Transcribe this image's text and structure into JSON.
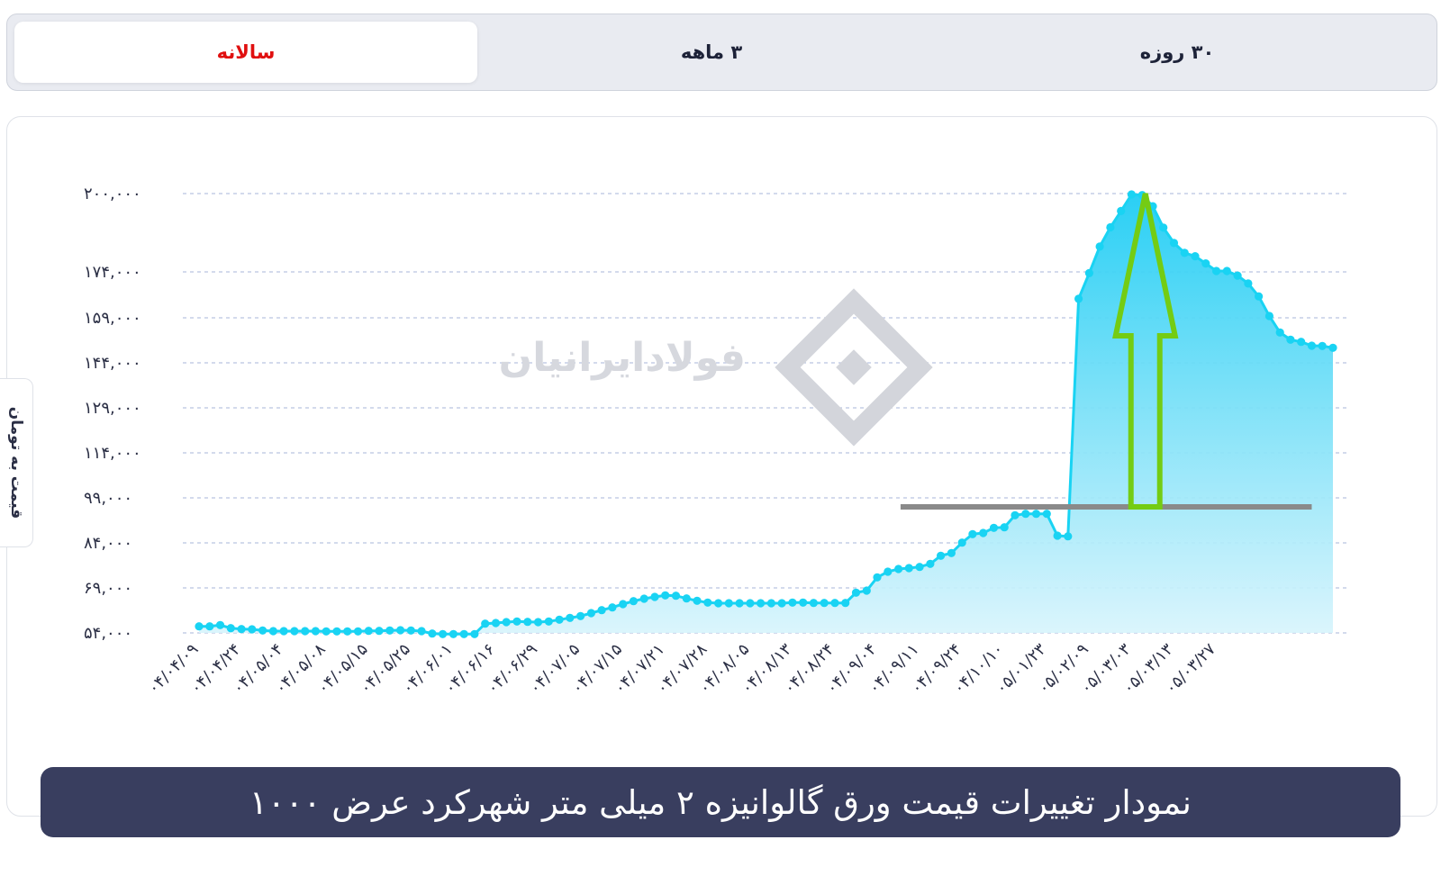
{
  "tabs": [
    {
      "label": "سالانه",
      "active": true
    },
    {
      "label": "۳ ماهه",
      "active": false
    },
    {
      "label": "۳۰ روزه",
      "active": false
    }
  ],
  "watermark": "فولادایرانیان",
  "colors": {
    "line": "#19d3f3",
    "area_top": "#1fcdf4",
    "area_bottom": "#d7f4fc",
    "arrow": "#74cc13",
    "threshold": "#8a8a8a",
    "active_tab": "#e01010",
    "caption_bg": "#393e5f"
  },
  "caption": "نمودار تغییرات قیمت ورق گالوانیزه ۲ میلی متر شهرکرد عرض ۱۰۰۰",
  "chart_data": {
    "type": "area",
    "title": "نمودار تغییرات قیمت ورق گالوانیزه ۲ میلی متر شهرکرد عرض ۱۰۰۰",
    "ylabel": "قیمت به تومان",
    "xlabel": "",
    "grid": true,
    "ylim": [
      54000,
      200000
    ],
    "y_ticks": [
      {
        "value": 54000,
        "label": "۵۴,۰۰۰"
      },
      {
        "value": 69000,
        "label": "۶۹,۰۰۰"
      },
      {
        "value": 84000,
        "label": "۸۴,۰۰۰"
      },
      {
        "value": 99000,
        "label": "۹۹,۰۰۰"
      },
      {
        "value": 114000,
        "label": "۱۱۴,۰۰۰"
      },
      {
        "value": 129000,
        "label": "۱۲۹,۰۰۰"
      },
      {
        "value": 144000,
        "label": "۱۴۴,۰۰۰"
      },
      {
        "value": 159000,
        "label": "۱۵۹,۰۰۰"
      },
      {
        "value": 174000,
        "label": "۱۷۴,۰۰۰"
      },
      {
        "value": 200000,
        "label": "۲۰۰,۰۰۰"
      }
    ],
    "x_ticks": [
      {
        "index": 0,
        "label": "۰۴/۰۴/۰۹"
      },
      {
        "index": 4,
        "label": "۰۴/۰۴/۲۴"
      },
      {
        "index": 8,
        "label": "۰۴/۰۵/۰۴"
      },
      {
        "index": 12,
        "label": "۰۴/۰۵/۰۸"
      },
      {
        "index": 16,
        "label": "۰۴/۰۵/۱۵"
      },
      {
        "index": 20,
        "label": "۰۴/۰۵/۲۵"
      },
      {
        "index": 24,
        "label": "۰۴/۰۶/۰۱"
      },
      {
        "index": 28,
        "label": "۰۴/۰۶/۱۶"
      },
      {
        "index": 32,
        "label": "۰۴/۰۶/۲۹"
      },
      {
        "index": 36,
        "label": "۰۴/۰۷/۰۵"
      },
      {
        "index": 40,
        "label": "۰۴/۰۷/۱۵"
      },
      {
        "index": 44,
        "label": "۰۴/۰۷/۲۱"
      },
      {
        "index": 48,
        "label": "۰۴/۰۷/۲۸"
      },
      {
        "index": 52,
        "label": "۰۴/۰۸/۰۵"
      },
      {
        "index": 56,
        "label": "۰۴/۰۸/۱۳"
      },
      {
        "index": 60,
        "label": "۰۴/۰۸/۲۴"
      },
      {
        "index": 64,
        "label": "۰۴/۰۹/۰۴"
      },
      {
        "index": 68,
        "label": "۰۴/۰۹/۱۱"
      },
      {
        "index": 72,
        "label": "۰۴/۰۹/۲۴"
      },
      {
        "index": 76,
        "label": "۰۴/۱۰/۱۰"
      },
      {
        "index": 80,
        "label": "۰۵/۰۱/۲۳"
      },
      {
        "index": 84,
        "label": "۰۵/۰۲/۰۹"
      },
      {
        "index": 88,
        "label": "۰۵/۰۳/۰۳"
      },
      {
        "index": 92,
        "label": "۰۵/۰۳/۱۳"
      },
      {
        "index": 96,
        "label": "۰۵/۰۳/۲۷"
      }
    ],
    "series": [
      {
        "values": [
          56200,
          56200,
          56600,
          55600,
          55300,
          55200,
          54800,
          54600,
          54600,
          54600,
          54600,
          54600,
          54500,
          54500,
          54500,
          54500,
          54700,
          54700,
          54800,
          54900,
          54800,
          54600,
          53800,
          53600,
          53600,
          53600,
          53600,
          57100,
          57300,
          57600,
          57800,
          57700,
          57600,
          57800,
          58400,
          59000,
          59600,
          60600,
          61600,
          62500,
          63600,
          64600,
          65400,
          66000,
          66500,
          66400,
          65500,
          64700,
          64100,
          63900,
          63900,
          63900,
          63900,
          63900,
          63900,
          63900,
          64100,
          64100,
          64000,
          64000,
          64000,
          64000,
          67400,
          68100,
          72500,
          74400,
          75300,
          75600,
          76000,
          77000,
          79700,
          80600,
          84100,
          86900,
          87300,
          89000,
          89200,
          93200,
          93700,
          93700,
          93700,
          86400,
          86200,
          165200,
          173600,
          182400,
          188800,
          194200,
          199700,
          199500,
          195800,
          188700,
          183600,
          180300,
          179200,
          176800,
          174300,
          174300,
          172800,
          170200,
          166000,
          159600,
          154100,
          151700,
          151000,
          149700,
          149600,
          149000
        ]
      }
    ],
    "annotations": [
      {
        "type": "horizontal_line",
        "y": 96000,
        "x_start_index": 66.2,
        "x_end_index": 105
      },
      {
        "type": "arrow_up",
        "x_index": 89.3,
        "y_from": 96000,
        "y_to": 200000
      }
    ]
  }
}
